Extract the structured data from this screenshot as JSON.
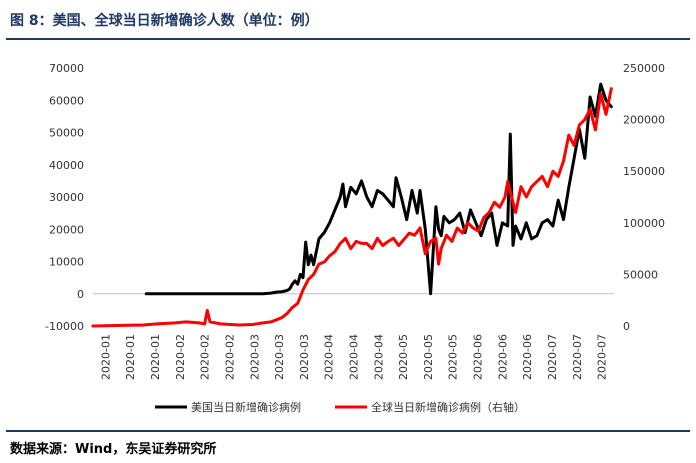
{
  "figure": {
    "title": "图 8：美国、全球当日新增确诊人数（单位：例）",
    "source": "数据来源：Wind，东吴证券研究所"
  },
  "chart_data": {
    "type": "line",
    "title": "",
    "xlabel": "",
    "ylabel": "",
    "y_left": {
      "ylim": [
        -10000,
        70000
      ],
      "ticks": [
        -10000,
        0,
        10000,
        20000,
        30000,
        40000,
        50000,
        60000,
        70000
      ]
    },
    "y_right": {
      "ylim": [
        0,
        250000
      ],
      "ticks": [
        0,
        50000,
        100000,
        150000,
        200000,
        250000
      ]
    },
    "x_tick_labels": [
      "2020-01",
      "2020-01",
      "2020-01",
      "2020-02",
      "2020-02",
      "2020-02",
      "2020-03",
      "2020-03",
      "2020-03",
      "2020-04",
      "2020-04",
      "2020-04",
      "2020-05",
      "2020-05",
      "2020-05",
      "2020-06",
      "2020-06",
      "2020-06",
      "2020-07",
      "2020-07",
      "2020-07"
    ],
    "x_range": [
      "2020-01-01",
      "2020-07-15"
    ],
    "grid": false,
    "legend_position": "bottom",
    "series": [
      {
        "name": "美国当日新增确诊病例",
        "axis": "left",
        "color": "#000000",
        "x": [
          "2020-01-21",
          "2020-02-10",
          "2020-03-01",
          "2020-03-05",
          "2020-03-08",
          "2020-03-10",
          "2020-03-12",
          "2020-03-14",
          "2020-03-15",
          "2020-03-16",
          "2020-03-17",
          "2020-03-18",
          "2020-03-19",
          "2020-03-20",
          "2020-03-21",
          "2020-03-22",
          "2020-03-23",
          "2020-03-24",
          "2020-03-26",
          "2020-03-28",
          "2020-03-30",
          "2020-04-01",
          "2020-04-03",
          "2020-04-04",
          "2020-04-05",
          "2020-04-07",
          "2020-04-09",
          "2020-04-11",
          "2020-04-13",
          "2020-04-15",
          "2020-04-17",
          "2020-04-19",
          "2020-04-21",
          "2020-04-23",
          "2020-04-24",
          "2020-04-26",
          "2020-04-28",
          "2020-04-30",
          "2020-05-02",
          "2020-05-03",
          "2020-05-05",
          "2020-05-07",
          "2020-05-09",
          "2020-05-10",
          "2020-05-11",
          "2020-05-12",
          "2020-05-14",
          "2020-05-16",
          "2020-05-18",
          "2020-05-20",
          "2020-05-22",
          "2020-05-24",
          "2020-05-26",
          "2020-05-28",
          "2020-05-30",
          "2020-06-01",
          "2020-06-03",
          "2020-06-05",
          "2020-06-06",
          "2020-06-07",
          "2020-06-08",
          "2020-06-10",
          "2020-06-12",
          "2020-06-14",
          "2020-06-16",
          "2020-06-18",
          "2020-06-20",
          "2020-06-22",
          "2020-06-24",
          "2020-06-26",
          "2020-06-28",
          "2020-06-30",
          "2020-07-02",
          "2020-07-04",
          "2020-07-06",
          "2020-07-08",
          "2020-07-10",
          "2020-07-12",
          "2020-07-14"
        ],
        "values": [
          0,
          0,
          0,
          0,
          200,
          500,
          600,
          1000,
          1500,
          3000,
          4000,
          3000,
          6000,
          5000,
          16000,
          9000,
          12000,
          9000,
          17000,
          19000,
          22000,
          26000,
          30000,
          34000,
          27000,
          33000,
          31000,
          35000,
          30000,
          27000,
          32000,
          31000,
          29000,
          27000,
          36000,
          30000,
          23000,
          32000,
          25000,
          32000,
          20000,
          0,
          27000,
          20000,
          18000,
          24000,
          22000,
          23000,
          25000,
          19000,
          26000,
          22000,
          18000,
          23000,
          25000,
          15000,
          22000,
          21000,
          49500,
          15000,
          21000,
          17000,
          22000,
          17000,
          18000,
          22000,
          23000,
          21000,
          29000,
          23000,
          33000,
          42000,
          51000,
          42000,
          61000,
          55000,
          65000,
          60000,
          58000
        ]
      },
      {
        "name": "全球当日新增确诊病例（右轴）",
        "axis": "right",
        "color": "#ff0000",
        "x": [
          "2020-01-01",
          "2020-01-10",
          "2020-01-20",
          "2020-01-25",
          "2020-02-01",
          "2020-02-05",
          "2020-02-10",
          "2020-02-12",
          "2020-02-13",
          "2020-02-14",
          "2020-02-18",
          "2020-02-25",
          "2020-03-01",
          "2020-03-05",
          "2020-03-08",
          "2020-03-10",
          "2020-03-12",
          "2020-03-14",
          "2020-03-16",
          "2020-03-18",
          "2020-03-20",
          "2020-03-22",
          "2020-03-24",
          "2020-03-26",
          "2020-03-28",
          "2020-03-30",
          "2020-04-01",
          "2020-04-03",
          "2020-04-05",
          "2020-04-07",
          "2020-04-09",
          "2020-04-11",
          "2020-04-13",
          "2020-04-15",
          "2020-04-17",
          "2020-04-19",
          "2020-04-21",
          "2020-04-23",
          "2020-04-25",
          "2020-04-27",
          "2020-04-29",
          "2020-05-01",
          "2020-05-03",
          "2020-05-05",
          "2020-05-07",
          "2020-05-09",
          "2020-05-10",
          "2020-05-11",
          "2020-05-13",
          "2020-05-15",
          "2020-05-17",
          "2020-05-19",
          "2020-05-21",
          "2020-05-23",
          "2020-05-25",
          "2020-05-27",
          "2020-05-29",
          "2020-05-31",
          "2020-06-02",
          "2020-06-04",
          "2020-06-05",
          "2020-06-06",
          "2020-06-08",
          "2020-06-10",
          "2020-06-12",
          "2020-06-14",
          "2020-06-16",
          "2020-06-18",
          "2020-06-20",
          "2020-06-22",
          "2020-06-24",
          "2020-06-26",
          "2020-06-28",
          "2020-06-30",
          "2020-07-02",
          "2020-07-04",
          "2020-07-06",
          "2020-07-08",
          "2020-07-10",
          "2020-07-12",
          "2020-07-14"
        ],
        "values": [
          0,
          500,
          1000,
          2000,
          3000,
          4000,
          3000,
          2000,
          15000,
          4000,
          2000,
          1000,
          1500,
          3000,
          4000,
          6000,
          8000,
          12000,
          18000,
          22000,
          35000,
          45000,
          50000,
          60000,
          62000,
          68000,
          72000,
          80000,
          85000,
          75000,
          82000,
          80000,
          80000,
          75000,
          85000,
          78000,
          82000,
          85000,
          78000,
          84000,
          90000,
          88000,
          95000,
          70000,
          82000,
          85000,
          60000,
          75000,
          88000,
          82000,
          95000,
          90000,
          100000,
          95000,
          92000,
          105000,
          110000,
          120000,
          115000,
          125000,
          140000,
          130000,
          110000,
          135000,
          125000,
          135000,
          140000,
          145000,
          135000,
          150000,
          145000,
          160000,
          185000,
          175000,
          195000,
          200000,
          210000,
          190000,
          225000,
          205000,
          230000
        ]
      }
    ]
  }
}
